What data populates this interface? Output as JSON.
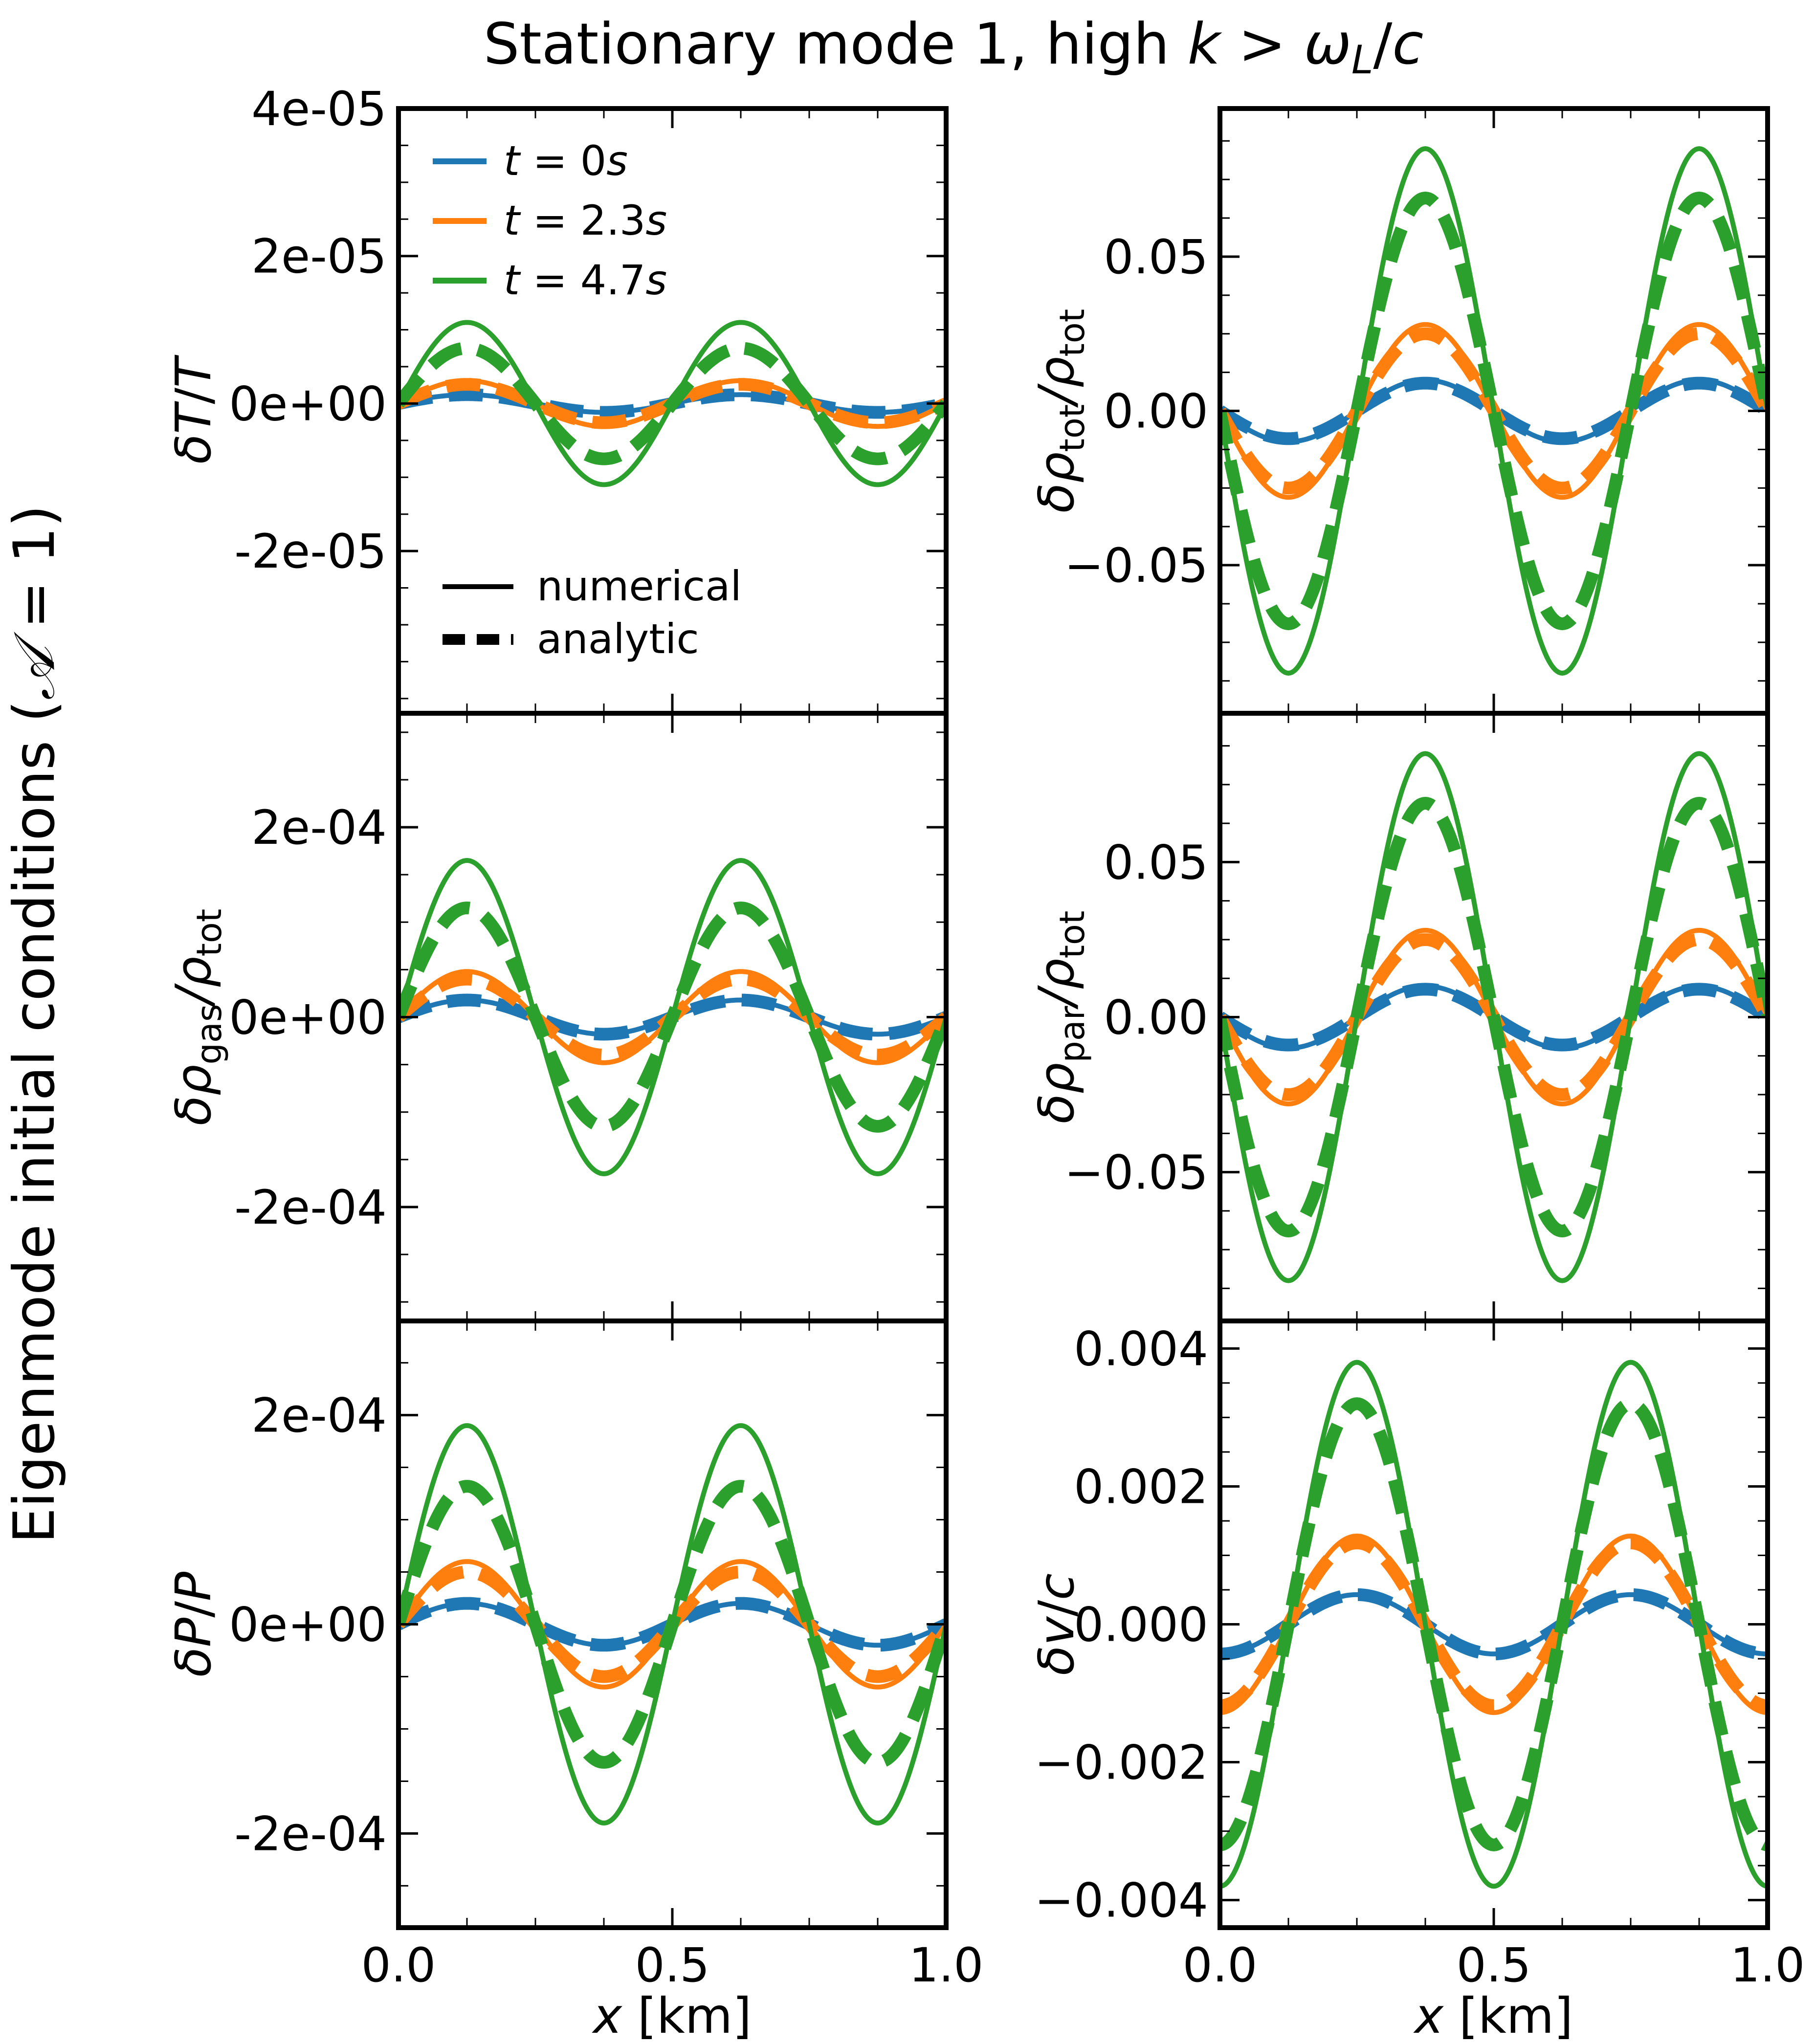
{
  "figure": {
    "title_prefix": "Stationary mode 1, high ",
    "title_k": "k",
    "title_rel": " > ",
    "title_w": "ω",
    "title_wsub": "L",
    "title_slash": "/",
    "title_c": "c",
    "side_label_text": "Eigenmode initial conditions (",
    "side_label_A": "𝒜",
    "side_label_eq": " = 1)"
  },
  "legend": {
    "times": [
      {
        "t": "t",
        "eq": " = ",
        "v": "0",
        "s": "s",
        "color": "#1f77b4"
      },
      {
        "t": "t",
        "eq": " = ",
        "v": "2.3",
        "s": "s",
        "color": "#ff7f0e"
      },
      {
        "t": "t",
        "eq": " = ",
        "v": "4.7",
        "s": "s",
        "color": "#2ca02c"
      }
    ],
    "styles": [
      {
        "label": "numerical",
        "dash": false
      },
      {
        "label": "analytic",
        "dash": true
      }
    ]
  },
  "chart_data": {
    "type": "line",
    "x_label_var": "x",
    "x_label_unit": " [km]",
    "xlim": [
      0,
      1
    ],
    "colors": [
      "#1f77b4",
      "#ff7f0e",
      "#2ca02c"
    ],
    "series_names": [
      "t = 0s",
      "t = 2.3s",
      "t = 4.7s"
    ],
    "panels": [
      {
        "id": "dT",
        "ylabel": {
          "a": "δ",
          "b": "T",
          "c": "/",
          "d": "T"
        },
        "ylim": [
          -4.2e-05,
          4e-05
        ],
        "yticks": [
          -2e-05,
          0,
          2e-05,
          4e-05
        ],
        "yticklabels": [
          "-2e-05",
          "0e+00",
          "2e-05",
          "4e-05"
        ],
        "minor_step": 5e-06,
        "phase": "sin",
        "cycles": 2,
        "numerical_amp": [
          1.2e-06,
          3.1e-06,
          1.1e-05
        ],
        "analytic_amp": [
          1.2e-06,
          2.6e-06,
          7.5e-06
        ],
        "show_legend": true
      },
      {
        "id": "drho_tot",
        "ylabel": {
          "a": "δρ",
          "sub1": "tot",
          "c": "/ρ",
          "sub2": "tot"
        },
        "ylim": [
          -0.098,
          0.098
        ],
        "yticks": [
          -0.05,
          0,
          0.05
        ],
        "yticklabels": [
          "−0.05",
          "0.00",
          "0.05"
        ],
        "minor_step": 0.0125,
        "phase": "negsin",
        "cycles": 2,
        "numerical_amp": [
          0.01,
          0.028,
          0.085
        ],
        "analytic_amp": [
          0.009,
          0.025,
          0.069
        ]
      },
      {
        "id": "drho_gas",
        "ylabel": {
          "a": "δρ",
          "sub1": "gas",
          "c": "/ρ",
          "sub2": "tot"
        },
        "ylim": [
          -0.00032,
          0.00032
        ],
        "yticks": [
          -0.0002,
          0,
          0.0002
        ],
        "yticklabels": [
          "-2e-04",
          "0e+00",
          "2e-04"
        ],
        "minor_step": 5e-05,
        "phase": "sin",
        "cycles": 2,
        "numerical_amp": [
          1.8e-05,
          4.8e-05,
          0.000165
        ],
        "analytic_amp": [
          1.8e-05,
          4e-05,
          0.000115
        ]
      },
      {
        "id": "drho_par",
        "ylabel": {
          "a": "δρ",
          "sub1": "par",
          "c": "/ρ",
          "sub2": "tot"
        },
        "ylim": [
          -0.098,
          0.098
        ],
        "yticks": [
          -0.05,
          0,
          0.05
        ],
        "yticklabels": [
          "−0.05",
          "0.00",
          "0.05"
        ],
        "minor_step": 0.0125,
        "phase": "negsin",
        "cycles": 2,
        "numerical_amp": [
          0.01,
          0.028,
          0.085
        ],
        "analytic_amp": [
          0.009,
          0.025,
          0.069
        ]
      },
      {
        "id": "dP",
        "ylabel": {
          "a": "δ",
          "b": "P",
          "c": "/",
          "d": "P"
        },
        "ylim": [
          -0.00029,
          0.00029
        ],
        "yticks": [
          -0.0002,
          0,
          0.0002
        ],
        "yticklabels": [
          "-2e-04",
          "0e+00",
          "2e-04"
        ],
        "minor_step": 5e-05,
        "phase": "sin",
        "cycles": 2,
        "numerical_amp": [
          2e-05,
          6e-05,
          0.00019
        ],
        "analytic_amp": [
          2e-05,
          5e-05,
          0.000132
        ]
      },
      {
        "id": "dv",
        "ylabel": {
          "a": "δ",
          "b": "v",
          "c": "/",
          "d": "c"
        },
        "ylim": [
          -0.0044,
          0.0044
        ],
        "yticks": [
          -0.004,
          -0.002,
          0,
          0.002,
          0.004
        ],
        "yticklabels": [
          "−0.004",
          "−0.002",
          "0.000",
          "0.002",
          "0.004"
        ],
        "minor_step": 0.0005,
        "phase": "negcos",
        "cycles": 2,
        "numerical_amp": [
          0.00043,
          0.00128,
          0.0038
        ],
        "analytic_amp": [
          0.00043,
          0.00118,
          0.0032
        ]
      }
    ],
    "xticks": [
      0,
      0.5,
      1
    ],
    "xticklabels": [
      "0.0",
      "0.5",
      "1.0"
    ],
    "x_minor_step": 0.125
  }
}
